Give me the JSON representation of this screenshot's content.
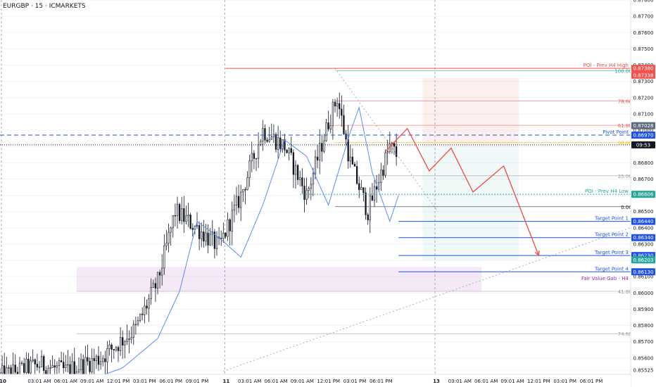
{
  "header": {
    "symbol": "EURGBP · 15 · ICMARKETS"
  },
  "colors": {
    "bull": "#131722",
    "bear": "#131722",
    "ma": "#5b8def",
    "red": "#ef5350",
    "green": "#26a69a",
    "blue": "#1e53e5",
    "purple": "#9c27b0",
    "fib": "#9e9e9e"
  },
  "chart_data": {
    "type": "candlestick",
    "symbol": "EURGBP",
    "timeframe": "15",
    "ylim": [
      0.855,
      0.878
    ],
    "y_ticks": [
      "0.87800",
      "0.87700",
      "0.87600",
      "0.87500",
      "0.87400",
      "0.87300",
      "0.87200",
      "0.87100",
      "0.87000",
      "0.86900",
      "0.86800",
      "0.86700",
      "0.86600",
      "0.86500",
      "0.86400",
      "0.86300",
      "0.86200",
      "0.86100",
      "0.86000",
      "0.85900",
      "0.85800",
      "0.85700",
      "0.85600",
      "0.85525"
    ],
    "x_ticks": [
      {
        "t": 0,
        "label": "10",
        "bold": true
      },
      {
        "t": 18,
        "label": "03:01 AM"
      },
      {
        "t": 30,
        "label": "06:01 AM"
      },
      {
        "t": 42,
        "label": "09:01 AM"
      },
      {
        "t": 54,
        "label": "12:01 PM"
      },
      {
        "t": 66,
        "label": "03:01 PM"
      },
      {
        "t": 78,
        "label": "06:01 PM"
      },
      {
        "t": 90,
        "label": "09:01 PM"
      },
      {
        "t": 102,
        "label": "11",
        "bold": true
      },
      {
        "t": 114,
        "label": "03:01 AM"
      },
      {
        "t": 126,
        "label": "06:01 AM"
      },
      {
        "t": 138,
        "label": "09:01 AM"
      },
      {
        "t": 150,
        "label": "12:01 PM"
      },
      {
        "t": 162,
        "label": "03:01 PM"
      },
      {
        "t": 174,
        "label": "06:01 PM"
      },
      {
        "t": 198,
        "label": "13",
        "bold": true
      },
      {
        "t": 210,
        "label": "03:01 AM"
      },
      {
        "t": 222,
        "label": "06:01 AM"
      },
      {
        "t": 234,
        "label": "09:01 AM"
      },
      {
        "t": 246,
        "label": "12:01 PM"
      },
      {
        "t": 258,
        "label": "03:01 PM"
      },
      {
        "t": 270,
        "label": "06:01 PM"
      }
    ],
    "price_levels": [
      {
        "name": "POI - Prev H4 High",
        "price": 0.8738,
        "color": "#ef5350",
        "badge": "0.87380"
      },
      {
        "name": "",
        "price": 0.87338,
        "color": "#ef5350",
        "badge": "0.87338"
      },
      {
        "name": "",
        "price": 0.87028,
        "color": "#5d6b7a",
        "badge": "0.87028"
      },
      {
        "name": "Pivot Point",
        "price": 0.8697,
        "color": "#1e53e5",
        "badge": "0.86970"
      },
      {
        "name": "",
        "price": 0.8691,
        "color": "#131722",
        "badge": "09:53"
      },
      {
        "name": "POI - Prev H4 Low",
        "price": 0.86606,
        "color": "#26a69a",
        "badge": "0.86606"
      },
      {
        "name": "Target Point 1",
        "price": 0.8644,
        "color": "#1e53e5",
        "badge": "0.86440"
      },
      {
        "name": "Target Point 2",
        "price": 0.8634,
        "color": "#1e53e5",
        "badge": "0.86340"
      },
      {
        "name": "Target Point 3",
        "price": 0.8623,
        "color": "#1e53e5",
        "badge": "0.86230"
      },
      {
        "name": "",
        "price": 0.86203,
        "color": "#26a69a",
        "badge": "0.86203"
      },
      {
        "name": "Target Point 4",
        "price": 0.8613,
        "color": "#1e53e5",
        "badge": "0.86130"
      }
    ],
    "fib_levels": [
      {
        "label": "100.00%",
        "price": 0.87365,
        "color": "#26a69a"
      },
      {
        "label": "78.60%",
        "price": 0.8718,
        "color": "#ef5350"
      },
      {
        "label": "61.80%",
        "price": 0.8703,
        "color": "#ef5350"
      },
      {
        "label": "50.00%",
        "price": 0.86925,
        "color": "#f5b800"
      },
      {
        "label": "25.00%",
        "price": 0.8672,
        "color": "#9e9e9e"
      },
      {
        "label": "0.00%",
        "price": 0.8653,
        "color": "#131722"
      },
      {
        "label": "41.80%",
        "price": 0.8601,
        "color": "#9e9e9e"
      },
      {
        "label": "74.60%",
        "price": 0.8575,
        "color": "#9e9e9e"
      }
    ],
    "zone_label": "Fair Value Gab - H4",
    "zone": {
      "top": 0.8616,
      "bottom": 0.8601
    },
    "path_points": [
      [
        176,
        0.8687
      ],
      [
        186,
        0.8701
      ],
      [
        196,
        0.8675
      ],
      [
        206,
        0.8689
      ],
      [
        216,
        0.8662
      ],
      [
        230,
        0.8678
      ],
      [
        246,
        0.8623
      ]
    ],
    "candles_spec": {
      "start": 0.8548,
      "count": 182
    }
  }
}
